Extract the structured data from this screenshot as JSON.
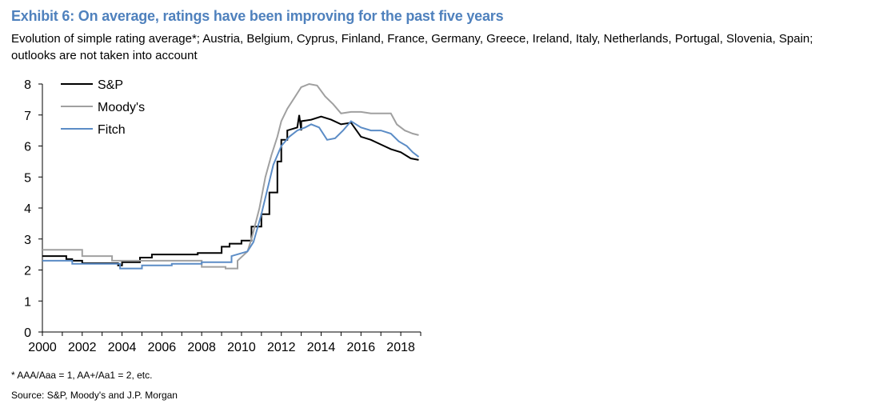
{
  "title": "Exhibit 6: On average, ratings have been improving for the past five years",
  "subtitle_line1": "Evolution of simple rating average*; Austria, Belgium, Cyprus, Finland, France, Germany, Greece, Ireland, Italy, Netherlands, Portugal, Slovenia, Spain;",
  "subtitle_line2": "outlooks are not taken into account",
  "footnote": "* AAA/Aaa = 1, AA+/Aa1 = 2, etc.",
  "source": "Source: S&P, Moody's and J.P. Morgan",
  "colors": {
    "sp": "#000000",
    "moodys": "#a0a0a0",
    "fitch": "#5b8cc6"
  },
  "chart_data": {
    "type": "line",
    "title": "",
    "xlabel": "",
    "ylabel": "",
    "xlim": [
      2000,
      2019
    ],
    "ylim": [
      0,
      8
    ],
    "xticks": [
      "2000",
      "2002",
      "2004",
      "2006",
      "2008",
      "2010",
      "2012",
      "2014",
      "2016",
      "2018"
    ],
    "yticks": [
      "0",
      "1",
      "2",
      "3",
      "4",
      "5",
      "6",
      "7",
      "8"
    ],
    "grid": false,
    "legend_position": "top-left",
    "series": [
      {
        "name": "S&P",
        "color": "#000000",
        "x": [
          2000.0,
          2001.2,
          2001.2,
          2001.5,
          2001.5,
          2002.0,
          2002.0,
          2003.8,
          2003.8,
          2004.0,
          2004.0,
          2004.9,
          2004.9,
          2005.5,
          2005.5,
          2007.8,
          2007.8,
          2009.0,
          2009.0,
          2009.4,
          2009.4,
          2010.0,
          2010.0,
          2010.5,
          2010.5,
          2011.0,
          2011.0,
          2011.4,
          2011.4,
          2011.8,
          2011.8,
          2012.0,
          2012.0,
          2012.3,
          2012.3,
          2012.8,
          2012.9,
          2013.0,
          2013.0,
          2013.5,
          2014.0,
          2014.5,
          2015.0,
          2015.5,
          2016.0,
          2016.5,
          2017.0,
          2017.5,
          2018.0,
          2018.5,
          2018.9
        ],
        "y": [
          2.45,
          2.45,
          2.35,
          2.35,
          2.3,
          2.3,
          2.22,
          2.22,
          2.15,
          2.15,
          2.25,
          2.25,
          2.4,
          2.4,
          2.5,
          2.5,
          2.55,
          2.55,
          2.75,
          2.75,
          2.85,
          2.85,
          2.95,
          2.95,
          3.4,
          3.4,
          3.8,
          3.8,
          4.5,
          4.5,
          5.5,
          5.5,
          6.2,
          6.2,
          6.5,
          6.6,
          7.0,
          6.5,
          6.8,
          6.85,
          6.95,
          6.85,
          6.7,
          6.75,
          6.3,
          6.2,
          6.05,
          5.9,
          5.8,
          5.6,
          5.55
        ]
      },
      {
        "name": "Moody's",
        "color": "#a0a0a0",
        "x": [
          2000.0,
          2002.0,
          2002.0,
          2003.5,
          2003.5,
          2008.0,
          2008.0,
          2009.2,
          2009.2,
          2009.8,
          2009.8,
          2010.3,
          2010.5,
          2010.9,
          2011.2,
          2011.5,
          2011.8,
          2012.0,
          2012.3,
          2012.7,
          2013.0,
          2013.4,
          2013.8,
          2014.2,
          2014.6,
          2015.0,
          2015.5,
          2016.0,
          2016.5,
          2017.0,
          2017.5,
          2017.8,
          2018.2,
          2018.6,
          2018.9
        ],
        "y": [
          2.65,
          2.65,
          2.45,
          2.45,
          2.3,
          2.3,
          2.1,
          2.1,
          2.05,
          2.05,
          2.3,
          2.6,
          3.0,
          4.0,
          5.0,
          5.7,
          6.3,
          6.8,
          7.2,
          7.6,
          7.9,
          8.0,
          7.95,
          7.6,
          7.35,
          7.05,
          7.1,
          7.1,
          7.05,
          7.05,
          7.05,
          6.7,
          6.5,
          6.4,
          6.35
        ]
      },
      {
        "name": "Fitch",
        "color": "#5b8cc6",
        "x": [
          2000.0,
          2001.5,
          2001.5,
          2003.9,
          2003.9,
          2005.0,
          2005.0,
          2006.5,
          2006.5,
          2008.0,
          2008.0,
          2009.5,
          2009.5,
          2010.3,
          2010.6,
          2011.0,
          2011.3,
          2011.6,
          2012.0,
          2012.4,
          2012.8,
          2013.2,
          2013.5,
          2013.9,
          2014.3,
          2014.7,
          2015.1,
          2015.5,
          2016.0,
          2016.5,
          2017.0,
          2017.5,
          2017.9,
          2018.3,
          2018.6,
          2018.9
        ],
        "y": [
          2.3,
          2.3,
          2.2,
          2.2,
          2.05,
          2.05,
          2.15,
          2.15,
          2.2,
          2.2,
          2.25,
          2.25,
          2.45,
          2.6,
          2.9,
          3.8,
          4.6,
          5.4,
          6.0,
          6.3,
          6.5,
          6.6,
          6.7,
          6.6,
          6.2,
          6.25,
          6.5,
          6.8,
          6.6,
          6.5,
          6.5,
          6.4,
          6.15,
          6.0,
          5.8,
          5.65
        ]
      }
    ]
  }
}
